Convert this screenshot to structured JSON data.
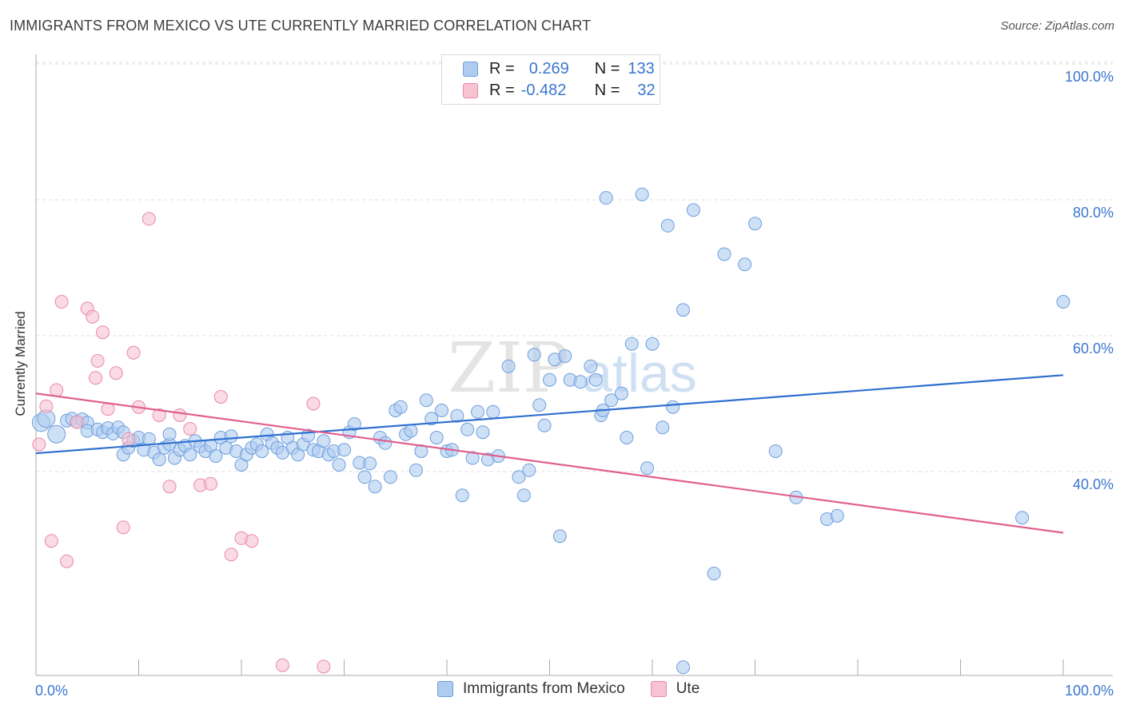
{
  "title": "IMMIGRANTS FROM MEXICO VS UTE CURRENTLY MARRIED CORRELATION CHART",
  "source": "Source: ZipAtlas.com",
  "watermark": {
    "zip": "ZIP",
    "atlas": "atlas"
  },
  "legend": {
    "rows": [
      {
        "r_label": "R =",
        "r_value": "0.269",
        "n_label": "N =",
        "n_value": "133"
      },
      {
        "r_label": "R =",
        "r_value": "-0.482",
        "n_label": "N =",
        "n_value": "32"
      }
    ]
  },
  "bottom_legend": [
    "Immigrants from Mexico",
    "Ute"
  ],
  "colors": {
    "blue_fill": "#aecbf0",
    "blue_stroke": "#6f9fdc",
    "blue_line": "#2f6fd0",
    "pink_fill": "#f7c2d2",
    "pink_stroke": "#e88aa8",
    "pink_line": "#e0608e",
    "tick_label": "#3a76cf",
    "grid": "#dcdcdc"
  },
  "chart_data": {
    "type": "scatter",
    "title": "IMMIGRANTS FROM MEXICO VS UTE CURRENTLY MARRIED CORRELATION CHART",
    "xlabel": "",
    "ylabel": "Currently Married",
    "xlim": [
      0,
      100
    ],
    "ylim": [
      10,
      100
    ],
    "x_tick_labels": [
      "0.0%",
      "100.0%"
    ],
    "y_ticks": [
      40,
      60,
      80,
      100
    ],
    "y_tick_labels": [
      "40.0%",
      "60.0%",
      "80.0%",
      "100.0%"
    ],
    "grid": "horizontal dashed",
    "series": [
      {
        "name": "Immigrants from Mexico",
        "color": "#aecbf0",
        "trend": {
          "x": [
            0,
            100
          ],
          "y": [
            42.7,
            54.2
          ]
        },
        "points": [
          [
            0.5,
            47.2
          ],
          [
            1,
            47.8
          ],
          [
            2,
            45.5
          ],
          [
            3,
            47.5
          ],
          [
            3.5,
            47.8
          ],
          [
            4,
            47.3
          ],
          [
            4.5,
            47.7
          ],
          [
            5,
            47.2
          ],
          [
            5,
            46.0
          ],
          [
            6,
            46.2
          ],
          [
            6.5,
            45.8
          ],
          [
            7,
            46.4
          ],
          [
            7.5,
            45.6
          ],
          [
            8,
            46.5
          ],
          [
            8.5,
            45.8
          ],
          [
            8.5,
            42.5
          ],
          [
            9,
            43.5
          ],
          [
            9.5,
            44.5
          ],
          [
            10,
            45.0
          ],
          [
            10.5,
            43.2
          ],
          [
            11,
            44.8
          ],
          [
            11.5,
            42.8
          ],
          [
            12,
            41.8
          ],
          [
            12.5,
            43.5
          ],
          [
            13,
            44.0
          ],
          [
            13,
            45.5
          ],
          [
            13.5,
            42.0
          ],
          [
            14,
            43.2
          ],
          [
            14.5,
            43.8
          ],
          [
            15,
            42.5
          ],
          [
            15.5,
            44.5
          ],
          [
            16,
            43.7
          ],
          [
            16.5,
            43.0
          ],
          [
            17,
            43.8
          ],
          [
            17.5,
            42.3
          ],
          [
            18,
            45.0
          ],
          [
            18.5,
            43.5
          ],
          [
            19,
            45.2
          ],
          [
            19.5,
            43.0
          ],
          [
            20,
            41.0
          ],
          [
            20.5,
            42.5
          ],
          [
            21,
            43.5
          ],
          [
            21.5,
            44.0
          ],
          [
            22,
            43.0
          ],
          [
            22.5,
            45.5
          ],
          [
            23,
            44.2
          ],
          [
            23.5,
            43.5
          ],
          [
            24,
            42.8
          ],
          [
            24.5,
            45.0
          ],
          [
            25,
            43.5
          ],
          [
            25.5,
            42.5
          ],
          [
            26,
            44.0
          ],
          [
            26.5,
            45.3
          ],
          [
            27,
            43.2
          ],
          [
            27.5,
            43.0
          ],
          [
            28,
            44.5
          ],
          [
            28.5,
            42.5
          ],
          [
            29,
            43.0
          ],
          [
            29.5,
            41.0
          ],
          [
            30,
            43.2
          ],
          [
            30.5,
            45.8
          ],
          [
            31,
            47.0
          ],
          [
            31.5,
            41.3
          ],
          [
            32,
            39.2
          ],
          [
            32.5,
            41.2
          ],
          [
            33,
            37.8
          ],
          [
            33.5,
            45.0
          ],
          [
            34,
            44.2
          ],
          [
            34.5,
            39.2
          ],
          [
            35,
            49.0
          ],
          [
            35.5,
            49.5
          ],
          [
            36,
            45.5
          ],
          [
            36.5,
            46.0
          ],
          [
            37,
            40.2
          ],
          [
            37.5,
            43.0
          ],
          [
            38,
            50.5
          ],
          [
            38.5,
            47.8
          ],
          [
            39,
            45.0
          ],
          [
            39.5,
            49.0
          ],
          [
            40,
            43.0
          ],
          [
            40.5,
            43.2
          ],
          [
            41,
            48.2
          ],
          [
            41.5,
            36.5
          ],
          [
            42,
            46.2
          ],
          [
            42.5,
            42.0
          ],
          [
            43,
            48.8
          ],
          [
            43.5,
            45.8
          ],
          [
            44,
            41.8
          ],
          [
            44.5,
            48.8
          ],
          [
            45,
            42.3
          ],
          [
            46,
            55.5
          ],
          [
            47,
            39.2
          ],
          [
            47.5,
            36.5
          ],
          [
            48,
            40.2
          ],
          [
            48.5,
            57.2
          ],
          [
            49,
            49.8
          ],
          [
            49.5,
            46.8
          ],
          [
            50,
            53.5
          ],
          [
            50.5,
            56.5
          ],
          [
            51,
            30.5
          ],
          [
            51.5,
            57.0
          ],
          [
            52,
            53.5
          ],
          [
            53,
            53.2
          ],
          [
            54,
            55.5
          ],
          [
            54.5,
            53.5
          ],
          [
            55,
            48.3
          ],
          [
            55.2,
            49.0
          ],
          [
            55.5,
            80.3
          ],
          [
            56,
            50.5
          ],
          [
            57,
            51.5
          ],
          [
            57.5,
            45.0
          ],
          [
            58,
            58.8
          ],
          [
            59,
            80.8
          ],
          [
            59.5,
            40.5
          ],
          [
            60,
            58.8
          ],
          [
            61,
            46.5
          ],
          [
            61.5,
            76.2
          ],
          [
            62,
            49.5
          ],
          [
            63,
            63.8
          ],
          [
            63,
            11.2
          ],
          [
            64,
            78.5
          ],
          [
            66,
            25.0
          ],
          [
            67,
            72.0
          ],
          [
            69,
            70.5
          ],
          [
            70,
            76.5
          ],
          [
            72,
            43.0
          ],
          [
            74,
            36.2
          ],
          [
            77,
            33.0
          ],
          [
            78,
            33.5
          ],
          [
            96,
            33.2
          ],
          [
            100,
            65.0
          ]
        ]
      },
      {
        "name": "Ute",
        "color": "#f7c2d2",
        "trend": {
          "x": [
            0,
            100
          ],
          "y": [
            51.5,
            31.0
          ]
        },
        "points": [
          [
            0.3,
            44.0
          ],
          [
            1,
            49.6
          ],
          [
            1.5,
            29.8
          ],
          [
            2,
            52.0
          ],
          [
            2.5,
            65.0
          ],
          [
            3,
            26.8
          ],
          [
            4,
            47.3
          ],
          [
            5,
            64.0
          ],
          [
            5.5,
            62.8
          ],
          [
            5.8,
            53.8
          ],
          [
            6,
            56.3
          ],
          [
            6.5,
            60.5
          ],
          [
            7,
            49.2
          ],
          [
            7.8,
            54.5
          ],
          [
            8.5,
            31.8
          ],
          [
            9,
            44.8
          ],
          [
            9.5,
            57.5
          ],
          [
            10,
            49.5
          ],
          [
            11,
            77.2
          ],
          [
            12,
            48.3
          ],
          [
            13,
            37.8
          ],
          [
            14,
            48.3
          ],
          [
            15,
            46.3
          ],
          [
            16,
            38.0
          ],
          [
            17,
            38.2
          ],
          [
            18,
            51.0
          ],
          [
            19,
            27.8
          ],
          [
            20,
            30.2
          ],
          [
            21,
            29.8
          ],
          [
            24,
            11.5
          ],
          [
            27,
            50.0
          ],
          [
            28,
            11.3
          ]
        ]
      }
    ]
  }
}
